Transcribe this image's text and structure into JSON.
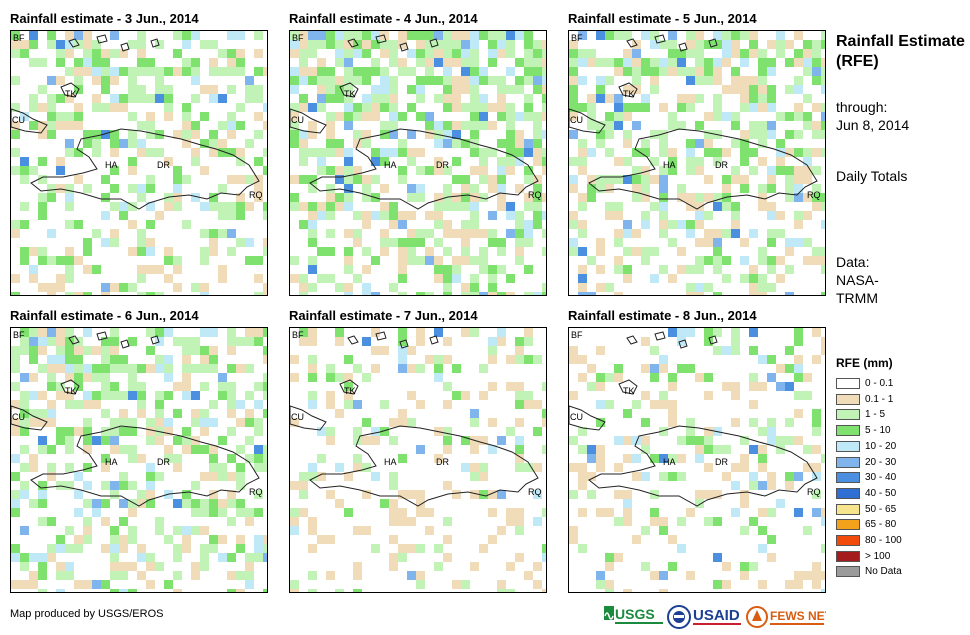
{
  "panels": [
    {
      "title": "Rainfall estimate - 3 Jun., 2014",
      "seed": 3,
      "wet": 0.5
    },
    {
      "title": "Rainfall estimate - 4 Jun., 2014",
      "seed": 4,
      "wet": 0.8
    },
    {
      "title": "Rainfall estimate - 5 Jun., 2014",
      "seed": 5,
      "wet": 0.7
    },
    {
      "title": "Rainfall estimate - 6 Jun., 2014",
      "seed": 6,
      "wet": 0.6
    },
    {
      "title": "Rainfall estimate - 7 Jun., 2014",
      "seed": 7,
      "wet": 0.2
    },
    {
      "title": "Rainfall estimate - 8 Jun., 2014",
      "seed": 8,
      "wet": 0.3
    }
  ],
  "map_labels": {
    "bf": "BF",
    "tk": "TK",
    "cu": "CU",
    "ha": "HA",
    "dr": "DR",
    "rq": "RQ"
  },
  "sidebar": {
    "title": "Rainfall Estimate (RFE)",
    "through_label": "through:",
    "through_date": "Jun 8, 2014",
    "totals": "Daily Totals",
    "data_label": "Data:",
    "data_source": "NASA-TRMM"
  },
  "legend": {
    "title": "RFE (mm)",
    "items": [
      {
        "label": "0 - 0.1",
        "color": "#ffffff"
      },
      {
        "label": "0.1 - 1",
        "color": "#f0dcb9"
      },
      {
        "label": "1 - 5",
        "color": "#c2f3b6"
      },
      {
        "label": "5 - 10",
        "color": "#7fe16e"
      },
      {
        "label": "10 - 20",
        "color": "#bfe9f6"
      },
      {
        "label": "20 - 30",
        "color": "#7fb5ec"
      },
      {
        "label": "30 - 40",
        "color": "#4a8fe0"
      },
      {
        "label": "40 - 50",
        "color": "#2f6ed3"
      },
      {
        "label": "50 - 65",
        "color": "#f7e58e"
      },
      {
        "label": "65 - 80",
        "color": "#f4a21c"
      },
      {
        "label": "80 - 100",
        "color": "#f24a0a"
      },
      {
        "label": "> 100",
        "color": "#a51c1c"
      },
      {
        "label": "No Data",
        "color": "#9b9b9b"
      }
    ]
  },
  "credit": "Map produced by USGS/EROS",
  "logos": {
    "usgs": "USGS",
    "usaid": "USAID",
    "fews": "FEWS NET"
  }
}
